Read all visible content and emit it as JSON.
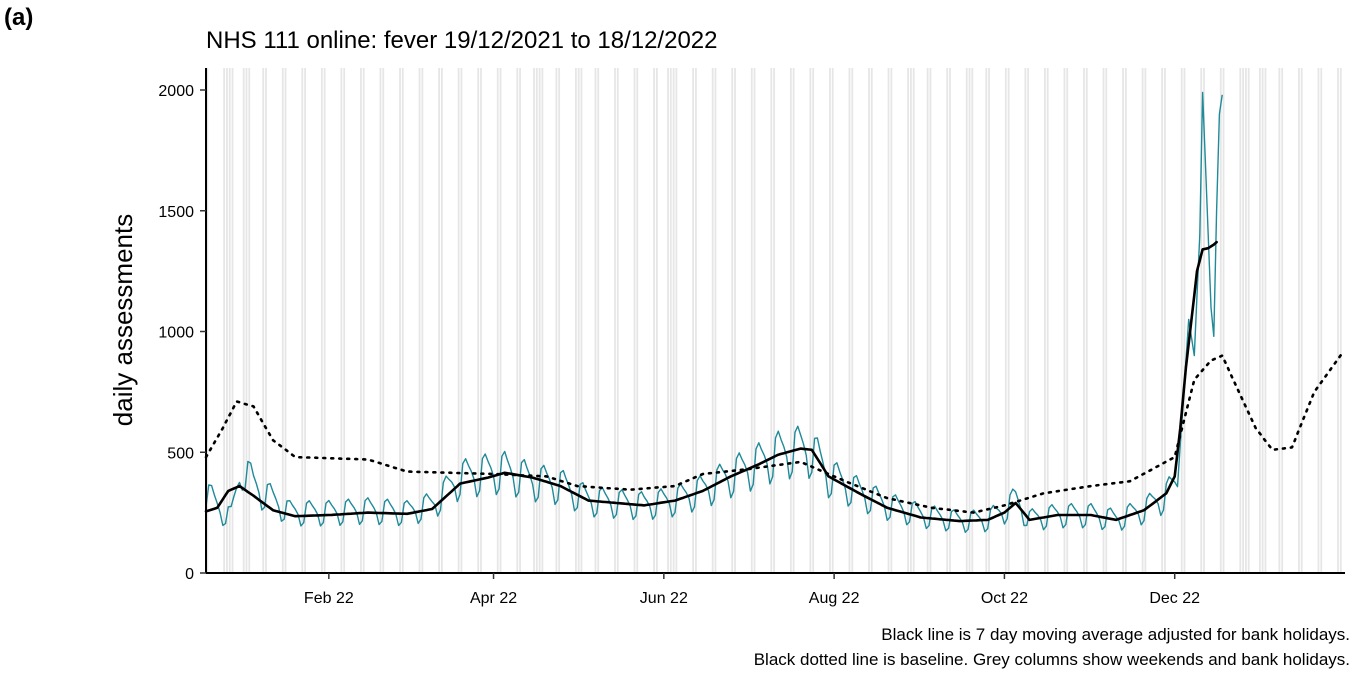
{
  "panel_label": "(a)",
  "captions": [
    "Black line is 7 day moving average adjusted for bank holidays.",
    "Black dotted line is baseline. Grey columns show weekends and bank holidays."
  ],
  "colors": {
    "daily": "#1f8a9a",
    "moving_average": "#000000",
    "baseline": "#000000",
    "weekend_band": "#e6e6e6"
  },
  "chart_data": {
    "type": "line",
    "title": "NHS 111 online: fever 19/12/2021 to 18/12/2022",
    "xlabel": "",
    "ylabel": "daily assessments",
    "x_type": "date",
    "xlim": [
      "2021-12-19",
      "2023-01-31"
    ],
    "ylim": [
      0,
      2000
    ],
    "y_ticks": [
      0,
      500,
      1000,
      1500,
      2000
    ],
    "x_ticks": [
      {
        "date": "2022-02-01",
        "label": "Feb 22"
      },
      {
        "date": "2022-04-01",
        "label": "Apr 22"
      },
      {
        "date": "2022-06-01",
        "label": "Jun 22"
      },
      {
        "date": "2022-08-01",
        "label": "Aug 22"
      },
      {
        "date": "2022-10-01",
        "label": "Oct 22"
      },
      {
        "date": "2022-12-01",
        "label": "Dec 22"
      }
    ],
    "grid": false,
    "legend": "none",
    "shaded_columns": "weekends and bank holidays",
    "bank_holidays": [
      "2021-12-27",
      "2021-12-28",
      "2022-01-03",
      "2022-04-15",
      "2022-04-18",
      "2022-05-02",
      "2022-06-02",
      "2022-06-03",
      "2022-08-29",
      "2022-09-19",
      "2022-12-26",
      "2022-12-27",
      "2023-01-02"
    ],
    "series": [
      {
        "name": "daily assessments",
        "style": "thin-teal",
        "weekday_amplitude": 0.22,
        "points": [
          [
            "2021-12-19",
            330
          ],
          [
            "2021-12-24",
            260
          ],
          [
            "2021-12-28",
            230
          ],
          [
            "2022-01-01",
            440
          ],
          [
            "2022-01-05",
            360
          ],
          [
            "2022-01-12",
            300
          ],
          [
            "2022-01-18",
            250
          ],
          [
            "2022-01-31",
            250
          ],
          [
            "2022-02-15",
            260
          ],
          [
            "2022-03-01",
            250
          ],
          [
            "2022-03-10",
            280
          ],
          [
            "2022-03-20",
            390
          ],
          [
            "2022-03-28",
            410
          ],
          [
            "2022-04-05",
            420
          ],
          [
            "2022-04-15",
            380
          ],
          [
            "2022-04-25",
            360
          ],
          [
            "2022-05-05",
            300
          ],
          [
            "2022-05-15",
            290
          ],
          [
            "2022-05-25",
            280
          ],
          [
            "2022-06-05",
            300
          ],
          [
            "2022-06-15",
            340
          ],
          [
            "2022-06-25",
            400
          ],
          [
            "2022-07-05",
            450
          ],
          [
            "2022-07-12",
            490
          ],
          [
            "2022-07-20",
            510
          ],
          [
            "2022-07-24",
            500
          ],
          [
            "2022-07-30",
            400
          ],
          [
            "2022-08-10",
            330
          ],
          [
            "2022-08-20",
            280
          ],
          [
            "2022-09-01",
            240
          ],
          [
            "2022-09-15",
            215
          ],
          [
            "2022-09-25",
            220
          ],
          [
            "2022-10-01",
            260
          ],
          [
            "2022-10-05",
            300
          ],
          [
            "2022-10-10",
            220
          ],
          [
            "2022-10-20",
            240
          ],
          [
            "2022-11-01",
            240
          ],
          [
            "2022-11-10",
            220
          ],
          [
            "2022-11-20",
            260
          ],
          [
            "2022-11-28",
            320
          ],
          [
            "2022-12-02",
            370
          ],
          [
            "2022-12-04",
            700
          ],
          [
            "2022-12-06",
            1050
          ],
          [
            "2022-12-08",
            900
          ],
          [
            "2022-12-10",
            1400
          ],
          [
            "2022-12-11",
            1990
          ],
          [
            "2022-12-12",
            1700
          ],
          [
            "2022-12-14",
            1100
          ],
          [
            "2022-12-15",
            980
          ],
          [
            "2022-12-16",
            1500
          ],
          [
            "2022-12-17",
            1900
          ],
          [
            "2022-12-18",
            1980
          ]
        ]
      },
      {
        "name": "7 day moving average",
        "style": "thick-black",
        "points": [
          [
            "2021-12-19",
            255
          ],
          [
            "2021-12-23",
            270
          ],
          [
            "2021-12-27",
            340
          ],
          [
            "2021-12-31",
            360
          ],
          [
            "2022-01-05",
            320
          ],
          [
            "2022-01-12",
            260
          ],
          [
            "2022-01-20",
            235
          ],
          [
            "2022-02-01",
            240
          ],
          [
            "2022-02-15",
            250
          ],
          [
            "2022-03-01",
            245
          ],
          [
            "2022-03-10",
            265
          ],
          [
            "2022-03-20",
            370
          ],
          [
            "2022-03-30",
            395
          ],
          [
            "2022-04-05",
            415
          ],
          [
            "2022-04-15",
            395
          ],
          [
            "2022-04-25",
            360
          ],
          [
            "2022-05-05",
            300
          ],
          [
            "2022-05-15",
            290
          ],
          [
            "2022-05-25",
            280
          ],
          [
            "2022-06-05",
            300
          ],
          [
            "2022-06-15",
            340
          ],
          [
            "2022-06-25",
            400
          ],
          [
            "2022-07-05",
            450
          ],
          [
            "2022-07-12",
            490
          ],
          [
            "2022-07-20",
            515
          ],
          [
            "2022-07-24",
            510
          ],
          [
            "2022-07-30",
            400
          ],
          [
            "2022-08-10",
            330
          ],
          [
            "2022-08-20",
            270
          ],
          [
            "2022-09-01",
            230
          ],
          [
            "2022-09-15",
            215
          ],
          [
            "2022-09-25",
            220
          ],
          [
            "2022-10-01",
            250
          ],
          [
            "2022-10-05",
            290
          ],
          [
            "2022-10-10",
            220
          ],
          [
            "2022-10-20",
            240
          ],
          [
            "2022-11-01",
            240
          ],
          [
            "2022-11-10",
            220
          ],
          [
            "2022-11-20",
            260
          ],
          [
            "2022-11-28",
            330
          ],
          [
            "2022-12-01",
            400
          ],
          [
            "2022-12-03",
            600
          ],
          [
            "2022-12-05",
            850
          ],
          [
            "2022-12-07",
            1050
          ],
          [
            "2022-12-09",
            1250
          ],
          [
            "2022-12-11",
            1340
          ],
          [
            "2022-12-13",
            1345
          ],
          [
            "2022-12-15",
            1360
          ],
          [
            "2022-12-16",
            1370
          ]
        ]
      },
      {
        "name": "baseline",
        "style": "dotted-black",
        "points": [
          [
            "2021-12-19",
            480
          ],
          [
            "2021-12-25",
            600
          ],
          [
            "2021-12-30",
            710
          ],
          [
            "2022-01-05",
            690
          ],
          [
            "2022-01-12",
            550
          ],
          [
            "2022-01-20",
            480
          ],
          [
            "2022-02-15",
            470
          ],
          [
            "2022-03-01",
            420
          ],
          [
            "2022-04-01",
            410
          ],
          [
            "2022-04-20",
            400
          ],
          [
            "2022-05-01",
            360
          ],
          [
            "2022-05-20",
            345
          ],
          [
            "2022-06-05",
            360
          ],
          [
            "2022-06-15",
            410
          ],
          [
            "2022-07-01",
            430
          ],
          [
            "2022-07-20",
            460
          ],
          [
            "2022-08-05",
            380
          ],
          [
            "2022-08-20",
            310
          ],
          [
            "2022-09-05",
            270
          ],
          [
            "2022-09-20",
            250
          ],
          [
            "2022-10-01",
            280
          ],
          [
            "2022-10-15",
            330
          ],
          [
            "2022-11-01",
            360
          ],
          [
            "2022-11-15",
            380
          ],
          [
            "2022-12-01",
            480
          ],
          [
            "2022-12-08",
            800
          ],
          [
            "2022-12-14",
            880
          ],
          [
            "2022-12-18",
            900
          ],
          [
            "2022-12-22",
            800
          ],
          [
            "2022-12-30",
            600
          ],
          [
            "2023-01-05",
            510
          ],
          [
            "2023-01-12",
            520
          ],
          [
            "2023-01-20",
            750
          ],
          [
            "2023-01-30",
            910
          ]
        ]
      }
    ]
  }
}
